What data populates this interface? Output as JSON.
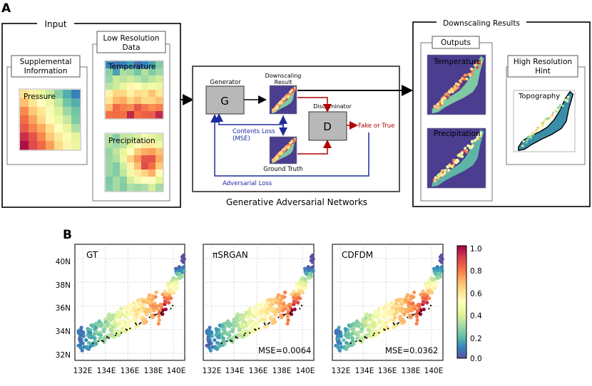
{
  "panel_a": {
    "label": "A",
    "input_title": "Input",
    "supplemental_title": [
      "Supplemental",
      "Information"
    ],
    "pressure_label": "Pressure",
    "lowres_title": [
      "Low Resolution",
      "Data"
    ],
    "temperature_label": "Temperature",
    "precipitation_label": "Precipitation",
    "gan_title": "Generative Adversarial Networks",
    "generator_label": "Generator",
    "generator_box": "G",
    "downscaling_label": [
      "Downscaling",
      "Result"
    ],
    "discriminator_label": "Discriminator",
    "discriminator_box": "D",
    "fake_or_true": "Fake or True",
    "contents_loss": [
      "Contents Loss",
      "(MSE)"
    ],
    "ground_truth": "Ground Truth",
    "adversarial_loss": "Adversarial Loss",
    "results_title": "Downscaling Results",
    "outputs_title": "Outputs",
    "out_temperature": "Temperature",
    "out_precipitation": "Precipitation",
    "hint_title": [
      "High Resolution",
      "Hint"
    ],
    "topography": "Topography",
    "mini_axis_lon": [
      "132E",
      "136E",
      "140E"
    ],
    "mini_axis_lat": [
      "40N",
      "36N",
      "32N"
    ]
  },
  "panel_b": {
    "label": "B",
    "maps": [
      {
        "title": "GT",
        "mse": ""
      },
      {
        "title": "πSRGAN",
        "mse": "MSE=0.0064"
      },
      {
        "title": "CDFDM",
        "mse": "MSE=0.0362"
      }
    ],
    "y_ticks": [
      "40N",
      "38N",
      "36N",
      "34N",
      "32N"
    ],
    "x_ticks": [
      "132E",
      "134E",
      "136E",
      "138E",
      "140E"
    ],
    "colorbar_ticks": [
      "1.0",
      "0.8",
      "0.6",
      "0.4",
      "0.2",
      "0.0"
    ],
    "colormap": [
      "#5e4fa2",
      "#3288bd",
      "#66c2a5",
      "#abdda4",
      "#e6f598",
      "#ffffbf",
      "#fee08b",
      "#fdae61",
      "#f46d43",
      "#d53e4f",
      "#9e0142"
    ]
  },
  "colors": {
    "map_background": "#4b3d8f",
    "generator_fill": "#b8b8b8",
    "red_arrow": "#b00000",
    "blue_arrow": "#1f2a9e"
  }
}
